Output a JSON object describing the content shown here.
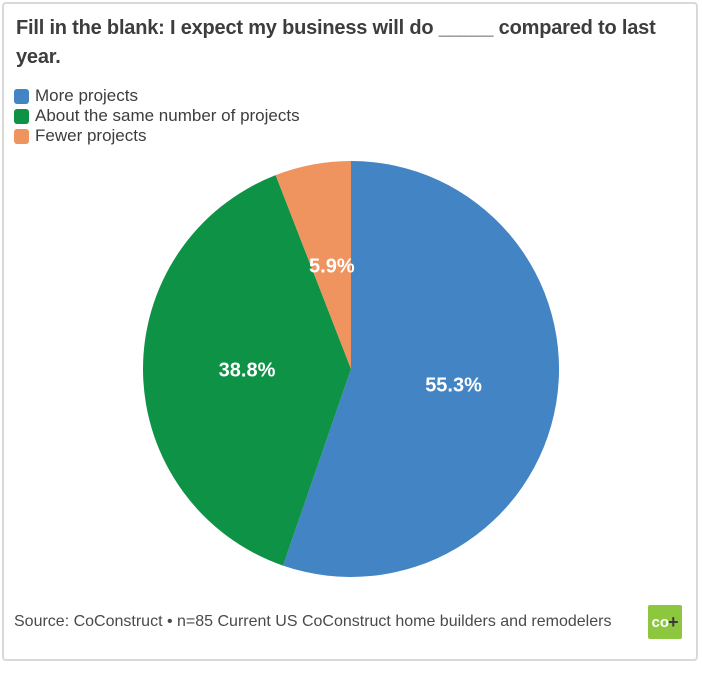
{
  "title": "Fill in the blank: I expect my business will do _____ compared to last year.",
  "legend": {
    "items": [
      {
        "label": "More projects",
        "color": "#4284C4"
      },
      {
        "label": "About the same number of projects",
        "color": "#0E9245"
      },
      {
        "label": "Fewer projects",
        "color": "#F0945F"
      }
    ]
  },
  "chart_data": {
    "type": "pie",
    "title": "Fill in the blank: I expect my business will do _____ compared to last year.",
    "categories": [
      "More projects",
      "About the same number of projects",
      "Fewer projects"
    ],
    "values": [
      55.3,
      38.8,
      5.9
    ],
    "value_labels": [
      "55.3%",
      "38.8%",
      "5.9%"
    ],
    "colors": [
      "#4284C4",
      "#0E9245",
      "#F0945F"
    ],
    "start_angle_deg": 0,
    "direction": "clockwise",
    "legend_position": "top-left",
    "slice_label_color": "#FFFFFF"
  },
  "footer": {
    "source_text": "Source: CoConstruct • n=85 Current US CoConstruct home builders and remodelers",
    "logo": {
      "text_co": "co",
      "text_plus": "+",
      "background": "#8DC63F"
    }
  }
}
